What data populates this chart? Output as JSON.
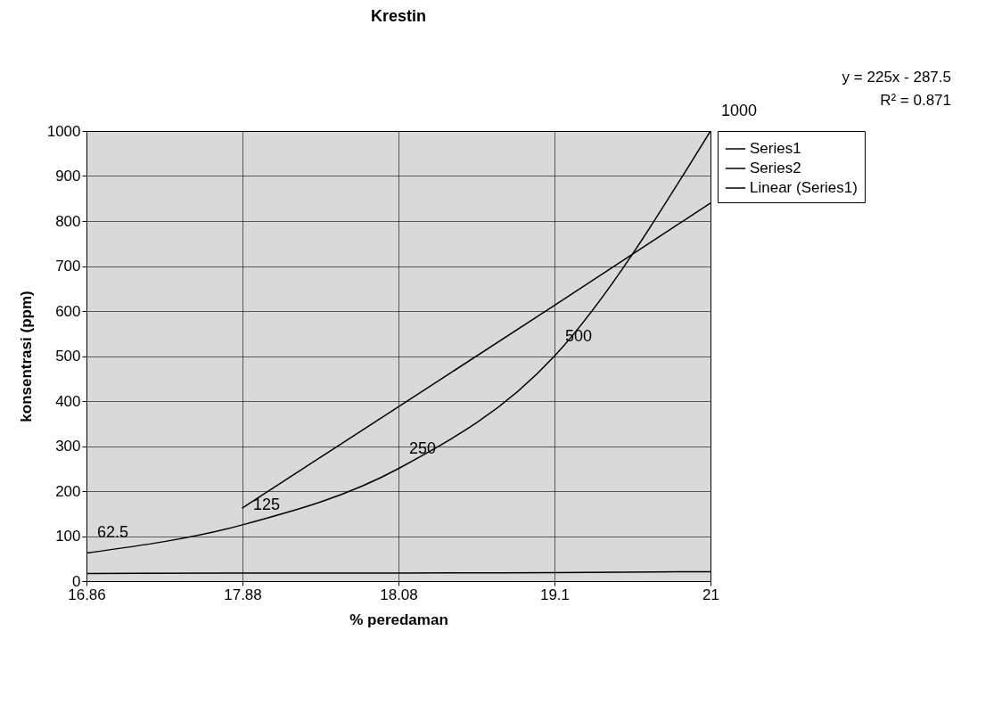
{
  "chart_data": {
    "type": "line",
    "title": "Krestin",
    "xlabel": "% peredaman",
    "ylabel": "konsentrasi (ppm)",
    "annotations": [
      "y = 225x - 287.5",
      "R² = 0.871"
    ],
    "categories": [
      "16.86",
      "17.88",
      "18.08",
      "19.1",
      "21"
    ],
    "ylim": [
      0,
      1000
    ],
    "yticks": [
      0,
      100,
      200,
      300,
      400,
      500,
      600,
      700,
      800,
      900,
      1000
    ],
    "series": [
      {
        "name": "Series1",
        "color": "#000000",
        "values": [
          17,
          18,
          18,
          19,
          21
        ]
      },
      {
        "name": "Series2",
        "color": "#000000",
        "values": [
          62.5,
          125,
          250,
          500,
          1000
        ],
        "value_labels": [
          "62.5",
          "125",
          "250",
          "500",
          "1000"
        ]
      },
      {
        "name": "Linear (Series1)",
        "type": "line",
        "color": "#000000",
        "values": [
          null,
          162.5,
          387.5,
          612.5,
          840
        ]
      }
    ],
    "grid": true,
    "legend": "right",
    "marker": "none",
    "line_style": "solid"
  }
}
